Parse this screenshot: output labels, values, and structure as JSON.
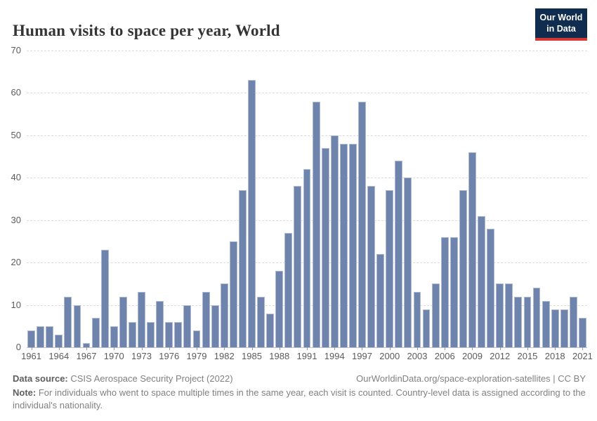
{
  "header": {
    "title": "Human visits to space per year, World",
    "logo": {
      "line1": "Our World",
      "line2": "in Data"
    }
  },
  "chart_data": {
    "type": "bar",
    "title": "Human visits to space per year, World",
    "xlabel": "",
    "ylabel": "",
    "ylim": [
      0,
      70
    ],
    "yticks": [
      0,
      10,
      20,
      30,
      40,
      50,
      60,
      70
    ],
    "grid": "horizontal-dashed",
    "legend": "none",
    "bar_color": "#6e84ad",
    "xtick_labels": [
      "1961",
      "1964",
      "1967",
      "1970",
      "1973",
      "1976",
      "1979",
      "1982",
      "1985",
      "1988",
      "1991",
      "1994",
      "1997",
      "2000",
      "2003",
      "2006",
      "2009",
      "2012",
      "2015",
      "2018",
      "2021"
    ],
    "years": [
      1961,
      1962,
      1963,
      1964,
      1965,
      1966,
      1967,
      1968,
      1969,
      1970,
      1971,
      1972,
      1973,
      1974,
      1975,
      1976,
      1977,
      1978,
      1979,
      1980,
      1981,
      1982,
      1983,
      1984,
      1985,
      1986,
      1987,
      1988,
      1989,
      1990,
      1991,
      1992,
      1993,
      1994,
      1995,
      1996,
      1997,
      1998,
      1999,
      2000,
      2001,
      2002,
      2003,
      2004,
      2005,
      2006,
      2007,
      2008,
      2009,
      2010,
      2011,
      2012,
      2013,
      2014,
      2015,
      2016,
      2017,
      2018,
      2019,
      2020,
      2021
    ],
    "values": [
      4,
      5,
      5,
      3,
      12,
      10,
      1,
      7,
      23,
      5,
      12,
      6,
      13,
      6,
      11,
      6,
      6,
      10,
      4,
      13,
      10,
      15,
      25,
      37,
      63,
      12,
      8,
      18,
      27,
      38,
      42,
      58,
      47,
      50,
      48,
      48,
      58,
      38,
      22,
      37,
      44,
      40,
      13,
      9,
      15,
      26,
      26,
      37,
      46,
      31,
      28,
      15,
      15,
      12,
      12,
      14,
      11,
      9,
      9,
      12,
      7
    ]
  },
  "footer": {
    "datasource_label": "Data source:",
    "datasource_text": "CSIS Aerospace Security Project (2022)",
    "link_text": "OurWorldinData.org/space-exploration-satellites | CC BY",
    "note_label": "Note:",
    "note_text": "For individuals who went to space multiple times in the same year, each visit is counted. Country-level data is assigned according to the individual's nationality."
  },
  "colors": {
    "bar": "#6e84ad",
    "logo_background": "#102d4f",
    "logo_accent": "#d43a33",
    "title_text": "#343434",
    "axis_text": "#5b5b5b"
  }
}
